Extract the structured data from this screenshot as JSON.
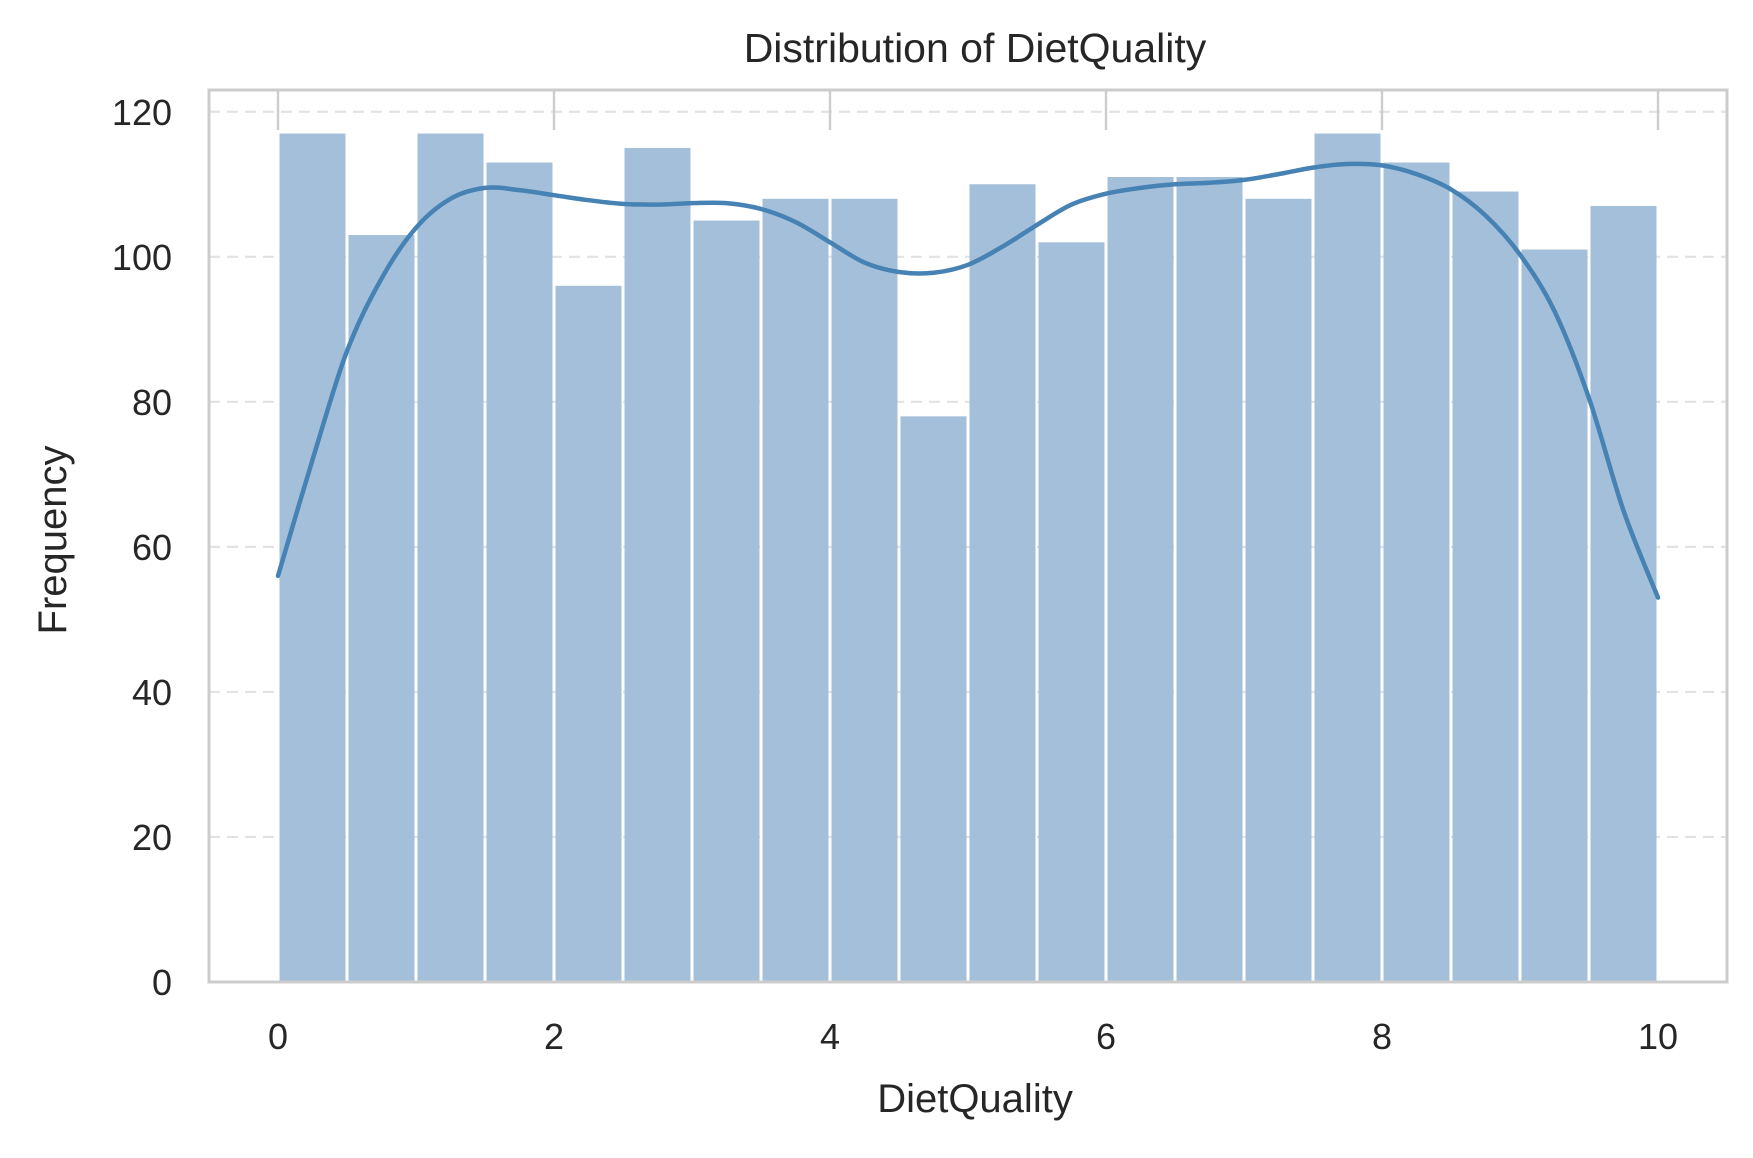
{
  "chart_data": {
    "type": "bar",
    "title": "Distribution of DietQuality",
    "xlabel": "DietQuality",
    "ylabel": "Frequency",
    "bin_edges": [
      0,
      0.5,
      1,
      1.5,
      2,
      2.5,
      3,
      3.5,
      4,
      4.5,
      5,
      5.5,
      6,
      6.5,
      7,
      7.5,
      8,
      8.5,
      9,
      9.5,
      10
    ],
    "values": [
      117,
      103,
      117,
      113,
      96,
      115,
      105,
      108,
      108,
      78,
      110,
      102,
      111,
      111,
      108,
      117,
      113,
      109,
      101,
      107
    ],
    "kde": {
      "x": [
        0,
        0.25,
        0.5,
        0.75,
        1,
        1.25,
        1.5,
        1.75,
        2,
        2.25,
        2.5,
        2.75,
        3,
        3.25,
        3.5,
        3.75,
        4,
        4.25,
        4.5,
        4.75,
        5,
        5.25,
        5.5,
        5.75,
        6,
        6.25,
        6.5,
        6.75,
        7,
        7.25,
        7.5,
        7.75,
        8,
        8.25,
        8.5,
        8.75,
        9,
        9.25,
        9.5,
        9.75,
        10
      ],
      "y": [
        56,
        72,
        87,
        97,
        104,
        108,
        109.5,
        109.2,
        108.5,
        107.8,
        107.3,
        107.2,
        107.4,
        107.4,
        106.6,
        104.8,
        102,
        99.2,
        97.9,
        97.8,
        98.9,
        101.4,
        104.4,
        107.2,
        108.7,
        109.5,
        110,
        110.2,
        110.6,
        111.4,
        112.3,
        112.8,
        112.6,
        111.4,
        109.3,
        105.7,
        100.3,
        92.5,
        80.5,
        65,
        53
      ]
    },
    "xlim": [
      -0.5,
      10.5
    ],
    "ylim": [
      0,
      123
    ],
    "xticks": [
      0,
      2,
      4,
      6,
      8,
      10
    ],
    "yticks": [
      0,
      20,
      40,
      60,
      80,
      100,
      120
    ],
    "grid": "horizontal dashed",
    "legend": "none",
    "colors": {
      "bar": "#a4bfd9",
      "kde": "#4682b4",
      "grid": "#e2e2e2",
      "spine": "#cccccc",
      "text": "#262626"
    }
  }
}
